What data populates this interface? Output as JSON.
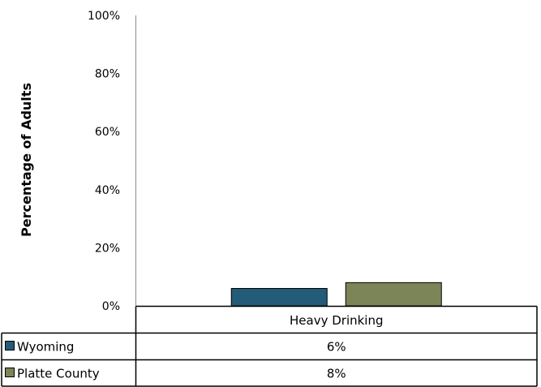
{
  "chart_data": {
    "type": "bar",
    "ylabel": "Percentage of Adults",
    "ylim": [
      0,
      100
    ],
    "y_ticks": [
      "0%",
      "20%",
      "40%",
      "60%",
      "80%",
      "100%"
    ],
    "y_tick_values": [
      0,
      20,
      40,
      60,
      80,
      100
    ],
    "categories": [
      "Heavy Drinking"
    ],
    "series": [
      {
        "name": "Wyoming",
        "values": [
          6
        ],
        "labels": [
          "6%"
        ],
        "color": "#235b78"
      },
      {
        "name": "Platte County",
        "values": [
          8
        ],
        "labels": [
          "8%"
        ],
        "color": "#7b8558"
      }
    ],
    "grid": false,
    "legend": "data-table"
  }
}
